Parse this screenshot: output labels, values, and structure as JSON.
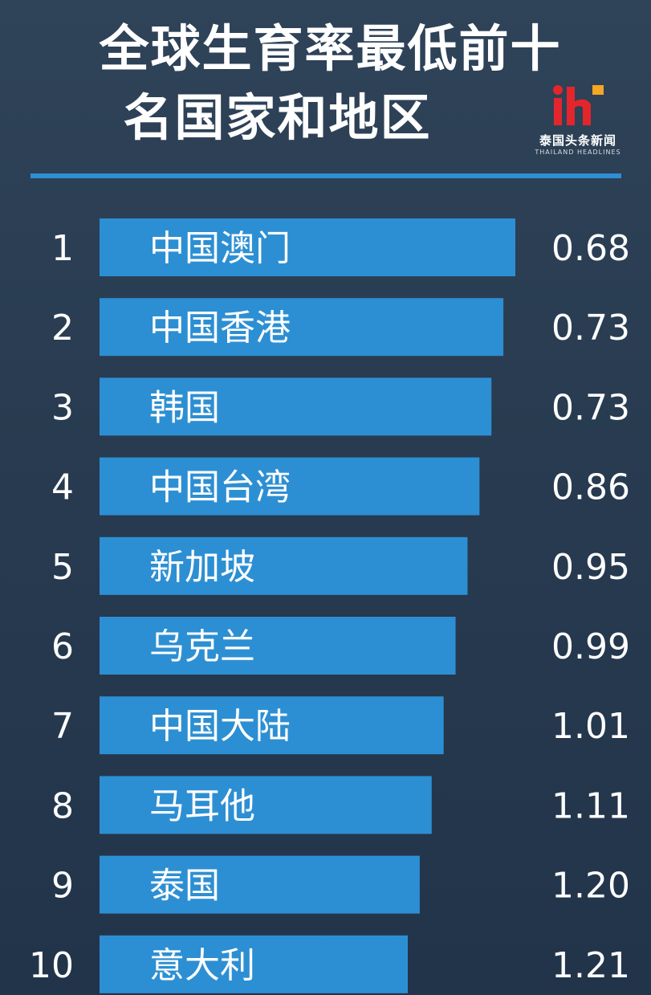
{
  "title": {
    "line1": "全球生育率最低前十",
    "line2": "名国家和地区"
  },
  "logo": {
    "mark": "ih",
    "name": "泰国头条新闻",
    "sub": "THAILAND HEADLINES"
  },
  "colors": {
    "background": "#2a3d52",
    "bar": "#2d8fd3",
    "accent_red": "#e3262b",
    "text": "#ffffff"
  },
  "chart_data": {
    "type": "bar",
    "orientation": "horizontal",
    "title": "全球生育率最低前十名国家和地区",
    "ranks": [
      "1",
      "2",
      "3",
      "4",
      "5",
      "6",
      "7",
      "8",
      "9",
      "10"
    ],
    "categories": [
      "中国澳门",
      "中国香港",
      "韩国",
      "中国台湾",
      "新加坡",
      "乌克兰",
      "中国大陆",
      "马耳他",
      "泰国",
      "意大利"
    ],
    "values": [
      0.68,
      0.73,
      0.73,
      0.86,
      0.95,
      0.99,
      1.01,
      1.11,
      1.2,
      1.21
    ],
    "value_labels": [
      "0.68",
      "0.73",
      "0.73",
      "0.86",
      "0.95",
      "0.99",
      "1.01",
      "1.11",
      "1.20",
      "1.21"
    ],
    "bar_length_note": "bars shorten from rank 1 to rank 10",
    "grid": false,
    "legend": "none"
  }
}
